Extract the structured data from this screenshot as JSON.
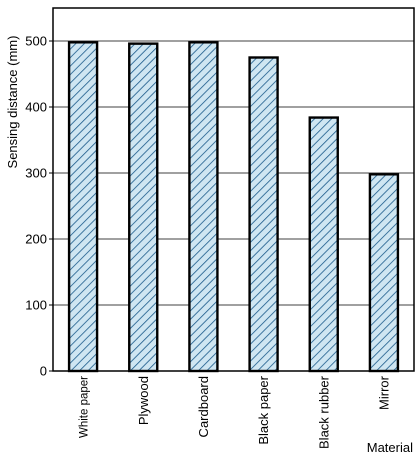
{
  "chart_data": {
    "type": "bar",
    "categories": [
      "White paper",
      "Plywood",
      "Cardboard",
      "Black paper",
      "Black rubber",
      "Mirror"
    ],
    "values": [
      498,
      496,
      498,
      475,
      384,
      298
    ],
    "xlabel": "Material",
    "ylabel": "Sensing distance  (mm)",
    "ylim": [
      0,
      550
    ],
    "yticks": [
      0,
      100,
      200,
      300,
      400,
      500
    ],
    "grid": true,
    "bar_fill": "#cfe6f2",
    "bar_hatch_color": "#1a5a8a",
    "bar_edge_color": "#000000"
  }
}
